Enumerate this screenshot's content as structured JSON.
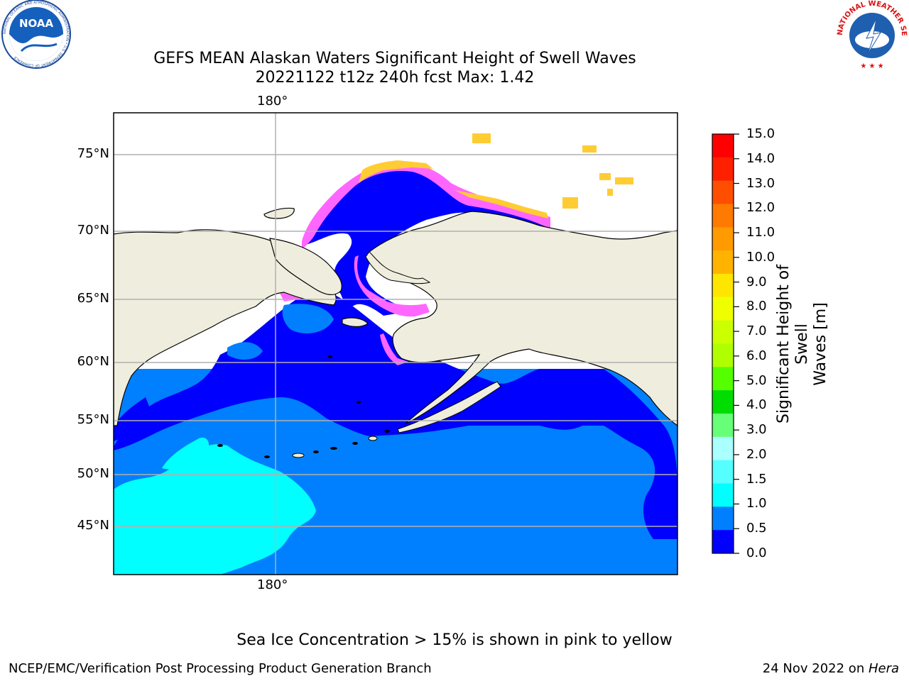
{
  "title_line1": "GEFS MEAN Alaskan Waters Significant Height of Swell Waves",
  "title_line2": "20221122 t12z 240h fcst   Max: 1.42",
  "lon_label": "180°",
  "lat_labels": [
    "75°N",
    "70°N",
    "65°N",
    "60°N",
    "55°N",
    "50°N",
    "45°N"
  ],
  "colorbar": {
    "label_line1": "Significant Height of Swell",
    "label_line2": "Waves [m]",
    "ticks": [
      "15.0",
      "14.0",
      "13.0",
      "12.0",
      "11.0",
      "10.0",
      "9.0",
      "8.0",
      "7.0",
      "6.0",
      "5.0",
      "4.0",
      "3.0",
      "2.0",
      "1.5",
      "1.0",
      "0.5",
      "0.0"
    ],
    "colors_top_to_bottom": [
      "#ff0000",
      "#ff2000",
      "#ff4e00",
      "#ff7a00",
      "#ff9a00",
      "#ffb300",
      "#ffe600",
      "#f0ff00",
      "#ccff00",
      "#b0ff00",
      "#55ff00",
      "#00dd00",
      "#66ff77",
      "#aaffff",
      "#55ffff",
      "#00ffff",
      "#0080ff",
      "#0000ff"
    ]
  },
  "map_colors": {
    "land": "#efeddd",
    "swell_0_0.5": "#0000ff",
    "swell_0.5_1.0": "#0080ff",
    "swell_1.0_1.5": "#00ffff",
    "ice_low": "#ff66ff",
    "ice_high": "#ffcc33",
    "grid": "#b0b0b0"
  },
  "caption": "Sea Ice Concentration > 15% is shown in pink to yellow",
  "footer_left": "NCEP/EMC/Verification Post Processing Product Generation Branch",
  "footer_right_prefix": "24 Nov 2022 on ",
  "footer_right_italic": "Hera",
  "logos": {
    "noaa_text": "NOAA",
    "noaa_ring_text": "NATIONAL OCEANIC AND ATMOSPHERIC ADMINISTRATION • U.S. DEPARTMENT OF COMMERCE",
    "nws_ring_text": "NATIONAL WEATHER SERVICE"
  }
}
